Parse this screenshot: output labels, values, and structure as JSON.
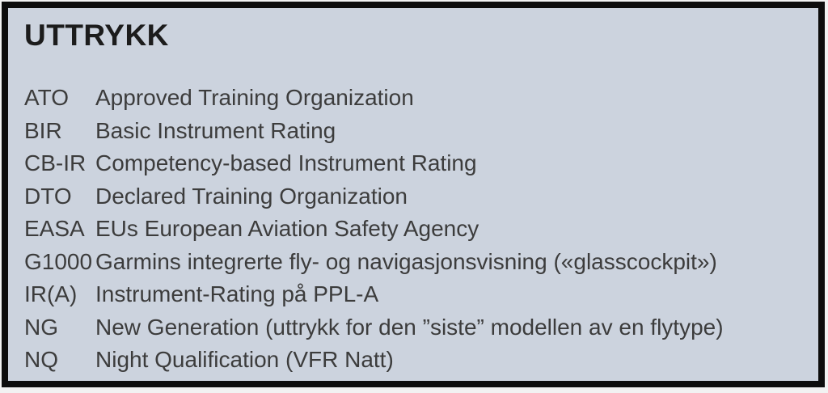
{
  "box": {
    "title": "UTTRYKK",
    "background_color": "#ccd3de",
    "border_color": "#0d0d0d",
    "title_color": "#1c1c1c",
    "text_color": "#3c3c3c"
  },
  "terms": [
    {
      "abbr": "ATO",
      "definition": "Approved Training Organization"
    },
    {
      "abbr": "BIR",
      "definition": "Basic Instrument Rating"
    },
    {
      "abbr": "CB-IR",
      "definition": "Competency-based Instrument Rating"
    },
    {
      "abbr": "DTO",
      "definition": "Declared Training Organization"
    },
    {
      "abbr": "EASA",
      "definition": "EUs European Aviation Safety Agency"
    },
    {
      "abbr": "G1000",
      "definition": "Garmins integrerte fly- og navigasjonsvisning («glasscockpit»)"
    },
    {
      "abbr": "IR(A)",
      "definition": "Instrument-Rating på PPL-A"
    },
    {
      "abbr": "NG",
      "definition": "New Generation (uttrykk for den ”siste” modellen av en flytype)"
    },
    {
      "abbr": "NQ",
      "definition": "Night Qualification (VFR Natt)"
    }
  ]
}
